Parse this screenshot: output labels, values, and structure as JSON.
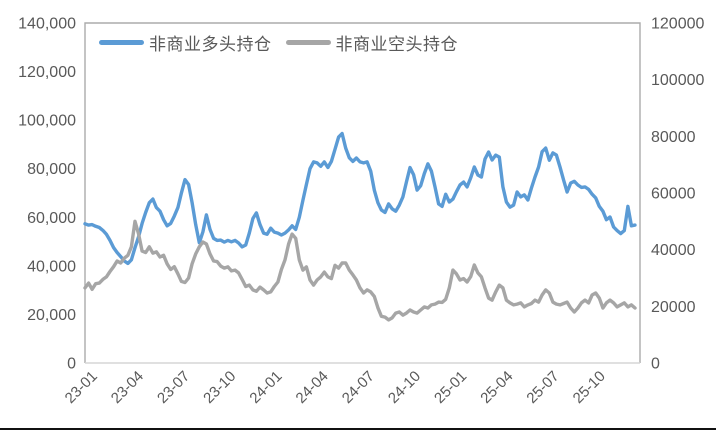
{
  "chart_data": {
    "type": "line",
    "title": "",
    "x_start": "2023-01",
    "x_end": "2025-12",
    "x_unit": "week",
    "x_tick_labels": [
      "23-01",
      "23-04",
      "23-07",
      "23-10",
      "24-01",
      "24-04",
      "24-07",
      "24-10",
      "25-01",
      "25-04",
      "25-07",
      "25-10"
    ],
    "left_axis": {
      "min": 0,
      "max": 140000,
      "step": 20000,
      "tick_labels": [
        "0",
        "20,000",
        "40,000",
        "60,000",
        "80,000",
        "100,000",
        "120,000",
        "140,000"
      ]
    },
    "right_axis": {
      "min": 0,
      "max": 120000,
      "step": 20000,
      "tick_labels": [
        "0",
        "20000",
        "40000",
        "60000",
        "80000",
        "100000",
        "120000"
      ]
    },
    "grid": false,
    "legend_position": "top",
    "series": [
      {
        "name": "非商业多头持仓",
        "axis": "left",
        "color": "#5B9BD5",
        "values": [
          57300,
          56800,
          57000,
          56300,
          55800,
          54600,
          53000,
          50500,
          47500,
          45500,
          43800,
          42000,
          41000,
          42500,
          47500,
          52000,
          57500,
          62000,
          66000,
          67500,
          64000,
          62500,
          59000,
          56500,
          57500,
          60500,
          64000,
          70000,
          75500,
          73500,
          66000,
          57000,
          49500,
          54000,
          61000,
          55000,
          51300,
          50500,
          50600,
          49800,
          50500,
          49900,
          50500,
          49400,
          47800,
          48600,
          53500,
          59500,
          61800,
          57000,
          53500,
          53000,
          55500,
          53900,
          53500,
          52700,
          53500,
          54800,
          56500,
          55000,
          60000,
          67000,
          73500,
          80000,
          82800,
          82400,
          81000,
          82800,
          80500,
          83000,
          88000,
          93000,
          94500,
          88500,
          84500,
          83000,
          84400,
          82800,
          82400,
          82800,
          79000,
          71200,
          66000,
          63000,
          62000,
          65500,
          63500,
          62500,
          65000,
          68400,
          74500,
          80500,
          77500,
          71200,
          73000,
          78000,
          82000,
          79000,
          72500,
          65500,
          64500,
          69500,
          66300,
          67500,
          70500,
          73300,
          74500,
          72500,
          76200,
          80700,
          77400,
          76600,
          84000,
          86900,
          83600,
          85600,
          84800,
          72500,
          66300,
          64200,
          65000,
          70400,
          68400,
          69200,
          67100,
          72000,
          76600,
          80700,
          87000,
          88500,
          83500,
          86500,
          85600,
          80700,
          75300,
          70400,
          74100,
          74800,
          73300,
          72300,
          72500,
          71500,
          69500,
          68000,
          64500,
          62500,
          59000,
          60100,
          56000,
          54500,
          53300,
          54500,
          64500,
          56500,
          56800
        ]
      },
      {
        "name": "非商业空头持仓",
        "axis": "right",
        "color": "#A6A6A6",
        "values": [
          26500,
          28200,
          26000,
          28000,
          28200,
          29500,
          30400,
          32300,
          34000,
          36000,
          35300,
          37000,
          38000,
          41000,
          50000,
          45500,
          39500,
          39000,
          41000,
          38800,
          39200,
          37400,
          38000,
          35000,
          33000,
          34000,
          31500,
          28800,
          28400,
          30000,
          35000,
          38500,
          41000,
          42700,
          42000,
          38500,
          36000,
          35800,
          34200,
          33500,
          33900,
          32500,
          32800,
          31800,
          29500,
          27000,
          27500,
          25800,
          25300,
          26800,
          25800,
          24700,
          25100,
          27000,
          28600,
          33000,
          36400,
          42000,
          45500,
          44000,
          36400,
          32800,
          33900,
          29300,
          27500,
          29300,
          30400,
          32100,
          30400,
          29800,
          34500,
          33500,
          35300,
          35300,
          32800,
          31100,
          29300,
          26500,
          24700,
          25800,
          25100,
          23500,
          19500,
          16500,
          16200,
          15200,
          15900,
          17600,
          18000,
          16900,
          17600,
          18700,
          18000,
          17600,
          18700,
          19800,
          19400,
          20500,
          20800,
          21500,
          21400,
          22500,
          26500,
          32800,
          31500,
          29300,
          29800,
          28600,
          30500,
          34600,
          31800,
          30400,
          26500,
          22900,
          22200,
          25100,
          27500,
          26500,
          22200,
          21200,
          20500,
          20800,
          21200,
          19800,
          20500,
          21000,
          22200,
          21500,
          24000,
          25800,
          24700,
          21500,
          20800,
          20500,
          21000,
          21500,
          19400,
          18000,
          19400,
          21200,
          22200,
          21200,
          24000,
          24700,
          22900,
          19400,
          21200,
          22200,
          21200,
          19800,
          20500,
          21200,
          19800,
          20500,
          19400
        ]
      }
    ],
    "style_colors": {
      "axis_text": "#595959",
      "plot_border": "#ABABAB",
      "x_axis_line": "#D6D6D6",
      "bottom_rule": "#111111"
    }
  }
}
